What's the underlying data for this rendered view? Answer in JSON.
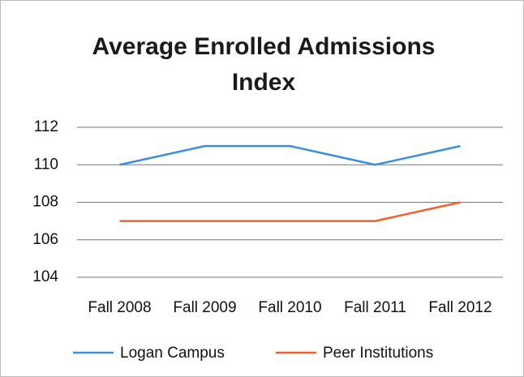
{
  "chart_data": {
    "type": "line",
    "title": "Average Enrolled Admissions Index",
    "categories": [
      "Fall 2008",
      "Fall 2009",
      "Fall 2010",
      "Fall 2011",
      "Fall 2012"
    ],
    "series": [
      {
        "name": "Logan Campus",
        "color": "#3a8fd8",
        "values": [
          110,
          111,
          111,
          110,
          111
        ]
      },
      {
        "name": "Peer Institutions",
        "color": "#f0602a",
        "values": [
          107,
          107,
          107,
          107,
          108
        ]
      }
    ],
    "ylim": [
      104,
      112
    ],
    "yticks": [
      104,
      106,
      108,
      110,
      112
    ],
    "grid": true,
    "legend": "bottom"
  }
}
